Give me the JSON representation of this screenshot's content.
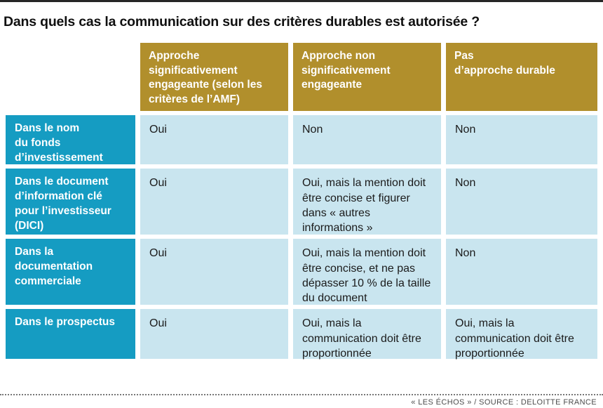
{
  "title": "Dans quels cas la communication sur des critères durables est autorisée ?",
  "table": {
    "column_headers_display": [
      "Approche\nsignificativement\nengageante (selon les\ncritères de l’AMF)",
      "Approche non\nsignificativement\nengageante",
      "Pas\nd’approche durable"
    ],
    "rows": [
      {
        "header": "Dans le nom\ndu fonds\nd’investissement",
        "cells": [
          "Oui",
          "Non",
          "Non"
        ]
      },
      {
        "header": "Dans le document\nd’information clé\npour l’investisseur\n(DICI)",
        "cells": [
          "Oui",
          "Oui, mais la mention doit\nêtre concise et figurer\ndans « autres\ninformations »",
          "Non"
        ]
      },
      {
        "header": "Dans la\ndocumentation\ncommerciale",
        "cells": [
          "Oui",
          "Oui, mais la mention doit\nêtre concise, et ne pas\ndépasser 10 % de la taille\ndu document",
          "Non"
        ]
      },
      {
        "header": "Dans le prospectus",
        "cells": [
          "Oui",
          "Oui, mais la\ncommunication doit être\nproportionnée",
          "Oui, mais la\ncommunication doit être\nproportionnée"
        ]
      }
    ]
  },
  "footer": {
    "credit": "« LES ÉCHOS » / SOURCE : DELOITTE FRANCE"
  },
  "colors": {
    "header_bg": "#B18F2C",
    "row_header_bg": "#159CC2",
    "cell_bg": "#C9E5EF",
    "cell_text": "#1B1B1B",
    "title_text": "#101010",
    "rule": "#262626"
  },
  "chart_data": {
    "type": "table",
    "title": "Dans quels cas la communication sur des critères durables est autorisée ?",
    "column_headers": [
      "Approche significativement engageante (selon les critères de l’AMF)",
      "Approche non significativement engageante",
      "Pas d’approche durable"
    ],
    "row_headers": [
      "Dans le nom du fonds d’investissement",
      "Dans le document d’information clé pour l’investisseur (DICI)",
      "Dans la documentation commerciale",
      "Dans le prospectus"
    ],
    "rows": [
      [
        "Oui",
        "Non",
        "Non"
      ],
      [
        "Oui",
        "Oui, mais la mention doit être concise et figurer dans « autres informations »",
        "Non"
      ],
      [
        "Oui",
        "Oui, mais la mention doit être concise, et ne pas dépasser 10 % de la taille du document",
        "Non"
      ],
      [
        "Oui",
        "Oui, mais la communication doit être proportionnée",
        "Oui, mais la communication doit être proportionnée"
      ]
    ],
    "legend": "none",
    "source": "« LES ÉCHOS » / SOURCE : DELOITTE FRANCE"
  }
}
